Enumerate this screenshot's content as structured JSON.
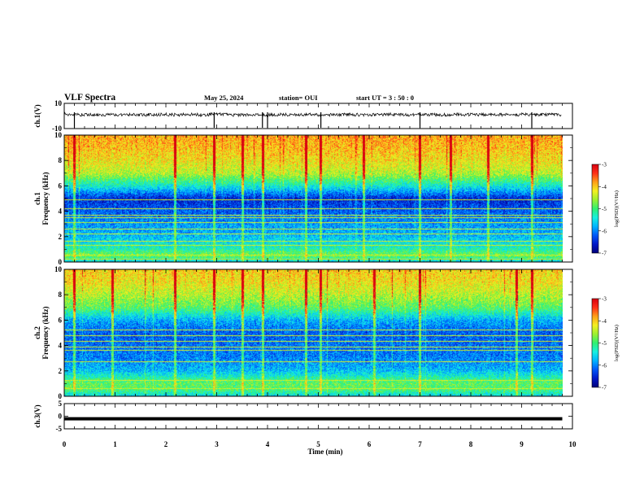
{
  "header": {
    "title": "VLF Spectra",
    "date": "May 25, 2024",
    "station": "station= OUI",
    "start_ut": "start  UT  =   3  : 50 : 0"
  },
  "colors": {
    "colormap": [
      "#00007a",
      "#0018c8",
      "#0058f8",
      "#00b4ff",
      "#18f0e0",
      "#30f070",
      "#9cf030",
      "#f4f020",
      "#ffa018",
      "#ff3018",
      "#d80010",
      "#ffffff"
    ],
    "background": "#ffffff",
    "axes": "#000000"
  },
  "chart_data": [
    {
      "type": "line",
      "id": "ch1-waveform",
      "ylabel": "ch.1(V)",
      "ylim": [
        -10,
        10
      ],
      "yticks": [
        "10",
        "-10"
      ],
      "xlim": [
        0,
        10
      ],
      "x": [
        0,
        0.25,
        0.5,
        0.75,
        1,
        1.25,
        1.5,
        1.75,
        2,
        2.25,
        2.5,
        2.75,
        3,
        3.25,
        3.5,
        3.75,
        4,
        4.25,
        4.5,
        4.75,
        5,
        5.25,
        5.5,
        5.75,
        6,
        6.25,
        6.5,
        6.75,
        7,
        7.25,
        7.5,
        7.75,
        8,
        8.25,
        8.5,
        8.75,
        9,
        9.25,
        9.5,
        9.75
      ],
      "y": [
        1.5,
        0.8,
        1.2,
        0.9,
        1.1,
        1.3,
        0.7,
        1.0,
        1.2,
        0.9,
        1.1,
        1.0,
        1.4,
        0.8,
        1.0,
        1.2,
        0.9,
        1.1,
        1.0,
        1.3,
        0.8,
        1.0,
        1.2,
        0.9,
        1.1,
        1.0,
        1.3,
        0.9,
        1.0,
        1.1,
        0.8,
        1.2,
        1.0,
        0.9,
        1.1,
        1.0,
        1.2,
        0.9,
        1.1,
        1.0
      ],
      "spikes": [
        0.2,
        2.95,
        3.9,
        4.0,
        5.05,
        7.0,
        9.2
      ]
    },
    {
      "type": "heatmap",
      "id": "ch1-spectrogram",
      "ylabel": "ch.1\nFrequency (kHz)",
      "ylim": [
        0,
        10
      ],
      "yticks": [
        "0",
        "2",
        "4",
        "6",
        "8",
        "10"
      ],
      "xlim": [
        0,
        9.8
      ],
      "colorbar": {
        "label": "log(PSD)(V²/Hz)",
        "range": [
          -7,
          -3
        ],
        "ticks": [
          "-3",
          "-4",
          "-5",
          "-6",
          "-7"
        ]
      },
      "level_profile_by_freq_khz": [
        [
          0,
          -5.6
        ],
        [
          0.5,
          -4.8
        ],
        [
          1,
          -5.3
        ],
        [
          2,
          -5.8
        ],
        [
          3,
          -6.0
        ],
        [
          4,
          -6.3
        ],
        [
          5,
          -6.6
        ],
        [
          6,
          -5.5
        ],
        [
          7,
          -4.6
        ],
        [
          8,
          -4.3
        ],
        [
          9,
          -4.1
        ],
        [
          10,
          -4.0
        ]
      ],
      "persistent_lines_khz": [
        0.2,
        0.5,
        1.3,
        1.6,
        2.2,
        2.6,
        3.1,
        3.5,
        3.7,
        4.2,
        4.9
      ],
      "impulsive_events_min": [
        0.2,
        2.18,
        2.95,
        3.5,
        3.9,
        4.75,
        5.05,
        5.9,
        7.0,
        7.6,
        8.35,
        9.2
      ]
    },
    {
      "type": "heatmap",
      "id": "ch2-spectrogram",
      "ylabel": "ch.2\nFrequency (kHz)",
      "ylim": [
        0,
        10
      ],
      "yticks": [
        "0",
        "2",
        "4",
        "6",
        "8",
        "10"
      ],
      "xlim": [
        0,
        9.8
      ],
      "colorbar": {
        "label": "log(PSD)(V²/Hz)",
        "range": [
          -7,
          -3
        ],
        "ticks": [
          "-3",
          "-4",
          "-5",
          "-6",
          "-7"
        ]
      },
      "level_profile_by_freq_khz": [
        [
          0,
          -5.6
        ],
        [
          0.5,
          -5.0
        ],
        [
          1,
          -4.9
        ],
        [
          2,
          -5.8
        ],
        [
          3,
          -6.1
        ],
        [
          4,
          -6.2
        ],
        [
          5,
          -6.3
        ],
        [
          6,
          -5.9
        ],
        [
          7,
          -5.0
        ],
        [
          8,
          -4.6
        ],
        [
          9,
          -4.3
        ],
        [
          10,
          -4.2
        ]
      ],
      "persistent_lines_khz": [
        0.6,
        1.2,
        2.7,
        3.6,
        3.9,
        4.3,
        4.8,
        5.2
      ],
      "impulsive_events_min": [
        0.2,
        0.95,
        2.18,
        2.95,
        3.5,
        3.9,
        4.75,
        5.05,
        6.1,
        7.0,
        8.9,
        9.2
      ]
    },
    {
      "type": "line",
      "id": "ch3-waveform",
      "ylabel": "ch.3(V)",
      "ylim": [
        -5,
        5
      ],
      "yticks": [
        "5",
        "0",
        "-5"
      ],
      "xlim": [
        0,
        10
      ],
      "x": [
        0,
        9.8
      ],
      "y": [
        -1.0,
        -1.0
      ]
    }
  ],
  "xaxis": {
    "label": "Time  (min)",
    "ticks": [
      "0",
      "1",
      "2",
      "3",
      "4",
      "5",
      "6",
      "7",
      "8",
      "9",
      "10"
    ]
  }
}
